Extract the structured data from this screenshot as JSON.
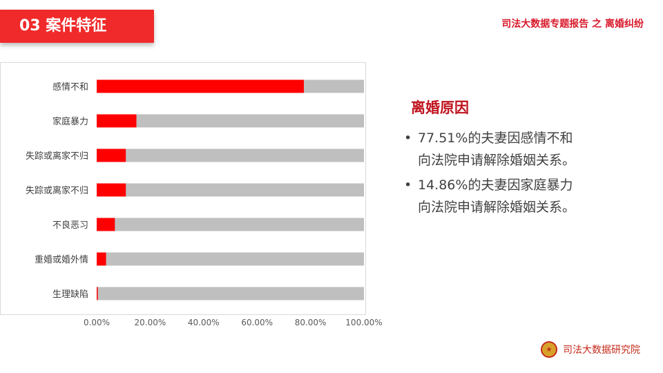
{
  "header": {
    "section_title": "03  案件特征",
    "report_title": "司法大数据专题报告 之 离婚纠纷"
  },
  "chart_data": {
    "type": "bar",
    "orientation": "horizontal",
    "stacked": true,
    "categories": [
      "感情不和",
      "家庭暴力",
      "失踪或离家不归",
      "失踪或离家不归",
      "不良恶习",
      "重婚或婚外情",
      "生理缺陷"
    ],
    "values": [
      77.51,
      14.86,
      10.9,
      10.9,
      6.8,
      3.5,
      0.4
    ],
    "xlim": [
      0,
      100
    ],
    "xticks": [
      "0.00%",
      "20.00%",
      "40.00%",
      "60.00%",
      "80.00%",
      "100.00%"
    ],
    "grid": false,
    "legend": "none",
    "colors": {
      "value": "#ff0000",
      "remainder": "#bfbfbf"
    }
  },
  "side_panel": {
    "heading": "离婚原因",
    "bullets": [
      {
        "line1": "77.51%的夫妻因感情不和",
        "line2": "向法院申请解除婚姻关系。"
      },
      {
        "line1": "14.86%的夫妻因家庭暴力",
        "line2": "向法院申请解除婚姻关系。"
      }
    ]
  },
  "footer": {
    "org_name": "司法大数据研究院",
    "emblem_icon": "court-emblem-icon"
  },
  "colors": {
    "accent": "#f02a2a",
    "heading_red": "#c0141f",
    "text": "#404040"
  }
}
